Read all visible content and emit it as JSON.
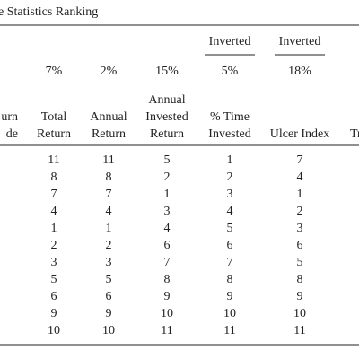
{
  "table": {
    "title": "e Statistics Ranking",
    "group_headers": [
      {
        "column": 4,
        "label": "Inverted"
      },
      {
        "column": 5,
        "label": "Inverted"
      }
    ],
    "weights": [
      "7%",
      "2%",
      "15%",
      "5%",
      "18%"
    ],
    "columns": [
      [
        "urn",
        "de"
      ],
      [
        "Total",
        "Return"
      ],
      [
        "Annual",
        "Return"
      ],
      [
        "Annual",
        "Invested",
        "Return"
      ],
      [
        "% Time",
        "Invested"
      ],
      [
        "Ulcer Index"
      ],
      [
        "Tr"
      ]
    ],
    "rows": [
      [
        11,
        11,
        5,
        1,
        7
      ],
      [
        8,
        8,
        2,
        2,
        4
      ],
      [
        7,
        7,
        1,
        3,
        1
      ],
      [
        4,
        4,
        3,
        4,
        2
      ],
      [
        1,
        1,
        4,
        5,
        3
      ],
      [
        2,
        2,
        6,
        6,
        6
      ],
      [
        3,
        3,
        7,
        7,
        5
      ],
      [
        5,
        5,
        8,
        8,
        8
      ],
      [
        6,
        6,
        9,
        9,
        9
      ],
      [
        9,
        9,
        10,
        10,
        10
      ],
      [
        10,
        10,
        11,
        11,
        11
      ]
    ]
  }
}
